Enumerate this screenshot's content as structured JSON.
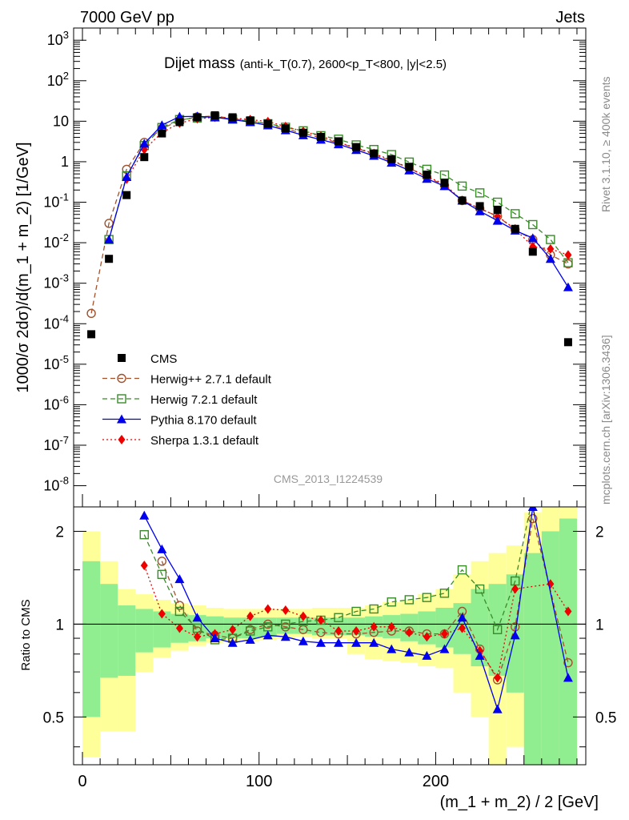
{
  "header": {
    "left": "7000 GeV pp",
    "right": "Jets"
  },
  "side_labels": {
    "rivet": "Rivet 3.1.10, ≥ 400k events",
    "mcplots": "mcplots.cern.ch [arXiv:1306.3436]"
  },
  "chart_data": [
    {
      "type": "scatter",
      "panel": "main",
      "title_main": "Dijet mass",
      "title_detail": "(anti-k_T(0.7), 2600<p_T<800, |y|<2.5)",
      "watermark": "CMS_2013_I1224539",
      "ylabel": "1000/σ 2dσ)/d(m_1 + m_2) [1/GeV]",
      "xlabel": "(m_1 + m_2) / 2 [GeV]",
      "xlim": [
        -5,
        285
      ],
      "ylim": [
        3e-09,
        2000
      ],
      "yscale": "log",
      "x_ticks": [
        "0",
        "100",
        "200"
      ],
      "y_ticks": [
        "10^3",
        "10^2",
        "10",
        "1",
        "10^-1",
        "10^-2",
        "10^-3",
        "10^-4",
        "10^-5",
        "10^-6",
        "10^-7",
        "10^-8"
      ],
      "x": [
        5,
        15,
        25,
        35,
        45,
        55,
        65,
        75,
        85,
        95,
        105,
        115,
        125,
        135,
        145,
        155,
        165,
        175,
        185,
        195,
        205,
        215,
        225,
        235,
        245,
        255,
        265,
        275
      ],
      "series": [
        {
          "name": "CMS",
          "color": "#000000",
          "marker": "square",
          "line": "none",
          "values": [
            5.5e-05,
            0.004,
            0.15,
            1.3,
            5,
            9.5,
            12.5,
            14,
            12.5,
            10.5,
            8.7,
            6.7,
            5.2,
            4.1,
            3.2,
            2.3,
            1.6,
            1.15,
            0.75,
            0.48,
            0.3,
            0.11,
            0.08,
            0.065,
            0.022,
            0.006,
            null,
            3.5e-05
          ]
        },
        {
          "name": "Herwig++ 2.7.1 default",
          "color": "#a0522d",
          "marker": "open-circle",
          "line": "dashed",
          "values": [
            0.00018,
            0.03,
            0.65,
            3.0,
            6.5,
            10.5,
            12.8,
            13.5,
            11.5,
            10.3,
            8.6,
            6.5,
            5.0,
            3.9,
            2.9,
            2.2,
            1.5,
            1.05,
            0.7,
            0.42,
            0.26,
            0.11,
            0.07,
            0.045,
            0.021,
            0.012,
            0.005,
            0.003
          ]
        },
        {
          "name": "Herwig 7.2.1 default",
          "color": "#3a8a2a",
          "marker": "open-square",
          "line": "dashed",
          "values": [
            null,
            0.012,
            0.45,
            2.5,
            7.0,
            11,
            12,
            12.8,
            11.3,
            10,
            8.7,
            7.1,
            5.8,
            4.4,
            3.6,
            2.6,
            2.0,
            1.5,
            0.98,
            0.65,
            0.47,
            0.25,
            0.17,
            0.1,
            0.052,
            0.028,
            0.012,
            0.0032
          ]
        },
        {
          "name": "Pythia 8.170 default",
          "color": "#0000ee",
          "marker": "filled-triangle",
          "line": "solid",
          "values": [
            null,
            0.012,
            0.42,
            2.8,
            8.0,
            13,
            13.2,
            12.5,
            11,
            9.5,
            7.9,
            6.0,
            4.5,
            3.5,
            2.7,
            1.95,
            1.4,
            0.95,
            0.61,
            0.38,
            0.25,
            0.11,
            0.06,
            0.035,
            0.02,
            0.013,
            0.004,
            0.0008
          ]
        },
        {
          "name": "Sherpa 1.3.1 default",
          "color": "#ee0000",
          "marker": "filled-diamond",
          "line": "dotted",
          "values": [
            null,
            null,
            0.37,
            2.0,
            5.2,
            9.0,
            11.5,
            12.5,
            12.0,
            11.0,
            9.8,
            7.4,
            5.6,
            4.3,
            3.0,
            2.2,
            1.6,
            1.1,
            0.7,
            0.43,
            0.28,
            0.11,
            0.07,
            0.045,
            0.022,
            0.008,
            0.007,
            0.005
          ]
        }
      ]
    },
    {
      "type": "line",
      "panel": "ratio",
      "ylabel": "Ratio to CMS",
      "ylim": [
        0.35,
        2.4
      ],
      "yscale": "log",
      "y_ticks": [
        "2",
        "1",
        "0.5"
      ],
      "reference": 1,
      "band_x": [
        0,
        10,
        20,
        30,
        40,
        50,
        60,
        70,
        80,
        90,
        100,
        110,
        120,
        130,
        140,
        150,
        160,
        170,
        180,
        190,
        200,
        210,
        220,
        230,
        240,
        250,
        260,
        270,
        280
      ],
      "bands": [
        {
          "name": "stat. uncertainty",
          "color": "#90ee90",
          "lo": [
            0.5,
            0.67,
            0.68,
            0.81,
            0.84,
            0.87,
            0.88,
            0.9,
            0.9,
            0.9,
            0.91,
            0.93,
            0.93,
            0.92,
            0.92,
            0.92,
            0.91,
            0.9,
            0.88,
            0.86,
            0.84,
            0.8,
            0.73,
            0.68,
            0.6,
            0.35,
            0.35,
            0.35
          ],
          "hi": [
            1.6,
            1.35,
            1.15,
            1.12,
            1.1,
            1.08,
            1.07,
            1.06,
            1.05,
            1.05,
            1.05,
            1.05,
            1.05,
            1.05,
            1.05,
            1.05,
            1.06,
            1.07,
            1.08,
            1.1,
            1.13,
            1.17,
            1.3,
            1.35,
            1.45,
            1.7,
            2.0,
            2.2
          ]
        },
        {
          "name": "total uncertainty",
          "color": "#ffff99",
          "lo": [
            0.37,
            0.45,
            0.45,
            0.7,
            0.78,
            0.82,
            0.85,
            0.87,
            0.88,
            0.88,
            0.89,
            0.9,
            0.91,
            0.9,
            0.9,
            0.8,
            0.77,
            0.76,
            0.75,
            0.73,
            0.72,
            0.6,
            0.5,
            0.35,
            0.4,
            0.35,
            0.35,
            0.35
          ],
          "hi": [
            2.0,
            1.6,
            1.3,
            1.25,
            1.2,
            1.17,
            1.15,
            1.13,
            1.12,
            1.12,
            1.12,
            1.12,
            1.12,
            1.13,
            1.13,
            1.13,
            1.15,
            1.18,
            1.2,
            1.25,
            1.3,
            1.45,
            1.6,
            1.7,
            1.8,
            2.3,
            2.4,
            2.4
          ]
        }
      ],
      "x": [
        5,
        15,
        25,
        35,
        45,
        55,
        65,
        75,
        85,
        95,
        105,
        115,
        125,
        135,
        145,
        155,
        165,
        175,
        185,
        195,
        205,
        215,
        225,
        235,
        245,
        255,
        265,
        275
      ],
      "series": [
        {
          "name": "Herwig++ 2.7.1 default",
          "color": "#a0522d",
          "marker": "open-circle",
          "line": "dashed",
          "values": [
            null,
            null,
            null,
            null,
            1.6,
            1.15,
            0.95,
            0.92,
            0.9,
            0.96,
            1.0,
            0.98,
            0.96,
            0.94,
            0.93,
            0.93,
            0.94,
            0.95,
            0.95,
            0.93,
            0.93,
            1.1,
            0.83,
            0.66,
            0.98,
            2.2,
            null,
            0.75
          ]
        },
        {
          "name": "Herwig 7.2.1 default",
          "color": "#3a8a2a",
          "marker": "open-square",
          "line": "dashed",
          "values": [
            null,
            null,
            null,
            1.95,
            1.45,
            1.1,
            0.97,
            0.89,
            0.9,
            0.95,
            0.98,
            1.0,
            1.02,
            1.03,
            1.05,
            1.1,
            1.12,
            1.18,
            1.2,
            1.22,
            1.26,
            1.5,
            1.3,
            0.96,
            1.38,
            2.6,
            null,
            null
          ]
        },
        {
          "name": "Pythia 8.170 default",
          "color": "#0000ee",
          "marker": "filled-triangle",
          "line": "solid",
          "values": [
            null,
            null,
            null,
            2.25,
            1.75,
            1.4,
            1.05,
            0.9,
            0.87,
            0.89,
            0.92,
            0.91,
            0.88,
            0.87,
            0.87,
            0.87,
            0.87,
            0.83,
            0.81,
            0.79,
            0.83,
            1.05,
            0.79,
            0.53,
            0.92,
            2.4,
            null,
            0.67
          ]
        },
        {
          "name": "Sherpa 1.3.1 default",
          "color": "#ee0000",
          "marker": "filled-diamond",
          "line": "dotted",
          "values": [
            null,
            null,
            null,
            1.55,
            1.08,
            0.97,
            0.91,
            0.93,
            0.96,
            1.06,
            1.12,
            1.11,
            1.06,
            1.03,
            0.95,
            0.95,
            0.98,
            0.98,
            0.94,
            0.91,
            0.93,
            0.97,
            0.82,
            0.67,
            1.3,
            null,
            1.35,
            1.1
          ]
        }
      ]
    }
  ]
}
